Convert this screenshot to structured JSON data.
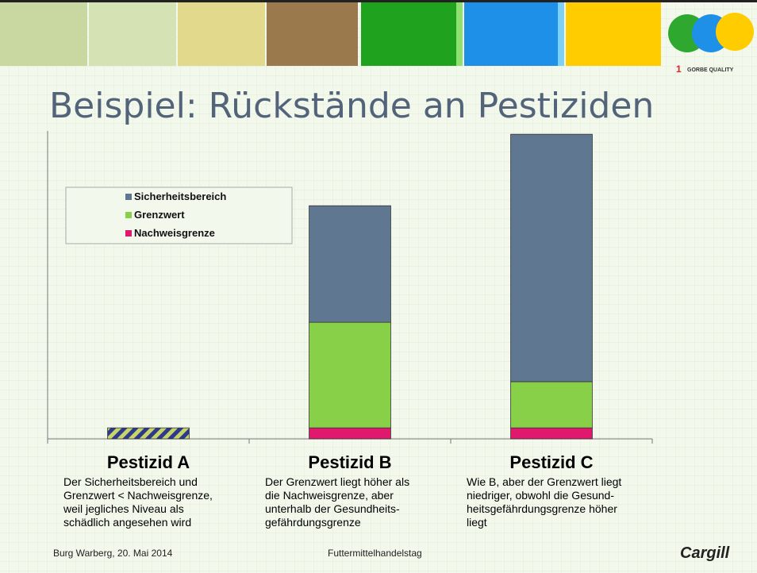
{
  "header": {
    "logo_number": "1",
    "logo_text": "GORBE QUALITY"
  },
  "chart_data": {
    "type": "stacked_bar",
    "title": "Beispiel: Rückstände an Pestiziden",
    "categories": [
      "Pestizid A",
      "Pestizid B",
      "Pestizid C"
    ],
    "series": [
      {
        "name": "Sicherheitsbereich",
        "color": "#5f7791",
        "values": [
          null,
          10.6,
          22.5
        ]
      },
      {
        "name": "Grenzwert",
        "color": "#88d048",
        "values": [
          null,
          9.6,
          4.2
        ]
      },
      {
        "name": "Nachweisgrenze",
        "color": "#e0196f",
        "values": [
          1,
          1,
          1
        ]
      }
    ],
    "hatched": [
      true,
      false,
      false
    ],
    "hatch_colors": [
      "#2b3a8c",
      "#c8d46a"
    ],
    "ylim": [
      0,
      28
    ],
    "descriptions": [
      [
        "Der Sicherheitsbereich und",
        "Grenzwert < Nachweisgrenze,",
        "weil jegliches Niveau als",
        "schädlich angesehen wird"
      ],
      [
        "Der Grenzwert liegt höher als",
        "die Nachweisgrenze, aber",
        "unterhalb der Gesundheits-",
        "gefährdungsgrenze"
      ],
      [
        "Wie B, aber der Grenzwert liegt",
        "niedriger, obwohl die Gesund-",
        "heitsgefährdungsgrenze höher",
        "liegt"
      ]
    ]
  },
  "footer": {
    "left": "Burg Warberg, 20. Mai 2014",
    "center": "Futtermittelhandelstag",
    "brand": "Cargill"
  }
}
